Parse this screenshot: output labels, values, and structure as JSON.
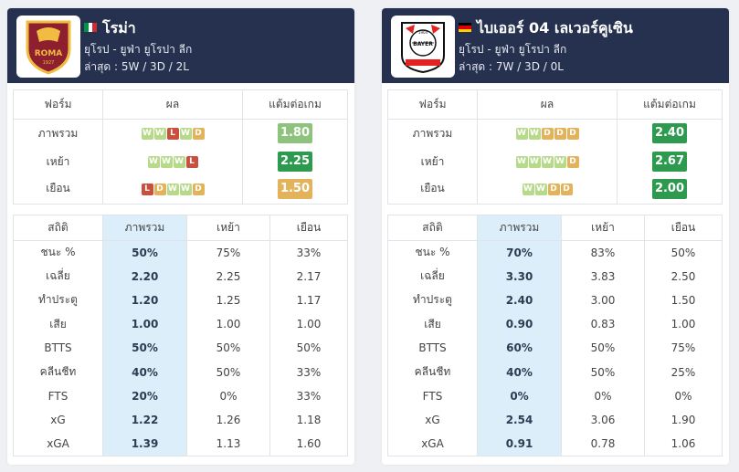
{
  "teams": [
    {
      "name": "โรม่า",
      "league": "ยุโรป - ยูฟ่า ยูโรปา ลีก",
      "latest": "ล่าสุด : 5W / 3D / 2L",
      "logo_icon": "roma-crest-icon",
      "logo_text": "ROMA",
      "logo_year": "1927",
      "flag": [
        "#009246",
        "#ffffff",
        "#ce2b37"
      ],
      "form": {
        "headers": [
          "ฟอร์ม",
          "ผล",
          "แต้มต่อเกม"
        ],
        "rows": [
          {
            "label": "ภาพรวม",
            "results": [
              "W",
              "W",
              "L",
              "W",
              "D"
            ],
            "ppg": "1.80",
            "ppg_color": "#8dc37c"
          },
          {
            "label": "เหย้า",
            "results": [
              "W",
              "W",
              "W",
              "L"
            ],
            "ppg": "2.25",
            "ppg_color": "#2d9a4f"
          },
          {
            "label": "เยือน",
            "results": [
              "L",
              "D",
              "W",
              "W",
              "D"
            ],
            "ppg": "1.50",
            "ppg_color": "#e3b35c"
          }
        ]
      },
      "stats": {
        "headers": [
          "สถิติ",
          "ภาพรวม",
          "เหย้า",
          "เยือน"
        ],
        "rows": [
          [
            "ชนะ %",
            "50%",
            "75%",
            "33%"
          ],
          [
            "เฉลี่ย",
            "2.20",
            "2.25",
            "2.17"
          ],
          [
            "ทำประตู",
            "1.20",
            "1.25",
            "1.17"
          ],
          [
            "เสีย",
            "1.00",
            "1.00",
            "1.00"
          ],
          [
            "BTTS",
            "50%",
            "50%",
            "50%"
          ],
          [
            "คลีนชีท",
            "40%",
            "50%",
            "33%"
          ],
          [
            "FTS",
            "20%",
            "0%",
            "33%"
          ],
          [
            "xG",
            "1.22",
            "1.26",
            "1.18"
          ],
          [
            "xGA",
            "1.39",
            "1.13",
            "1.60"
          ]
        ]
      }
    },
    {
      "name": "ไบเออร์ 04 เลเวอร์คูเซิน",
      "league": "ยุโรป - ยูฟ่า ยูโรปา ลีก",
      "latest": "ล่าสุด : 7W / 3D / 0L",
      "logo_icon": "leverkusen-crest-icon",
      "logo_text": "BAYER",
      "logo_year": "1904",
      "flag": [
        "#000000",
        "#dd0000",
        "#ffce00"
      ],
      "form": {
        "headers": [
          "ฟอร์ม",
          "ผล",
          "แต้มต่อเกม"
        ],
        "rows": [
          {
            "label": "ภาพรวม",
            "results": [
              "W",
              "W",
              "D",
              "D",
              "D"
            ],
            "ppg": "2.40",
            "ppg_color": "#2d9a4f"
          },
          {
            "label": "เหย้า",
            "results": [
              "W",
              "W",
              "W",
              "W",
              "D"
            ],
            "ppg": "2.67",
            "ppg_color": "#2d9a4f"
          },
          {
            "label": "เยือน",
            "results": [
              "W",
              "W",
              "D",
              "D"
            ],
            "ppg": "2.00",
            "ppg_color": "#2d9a4f"
          }
        ]
      },
      "stats": {
        "headers": [
          "สถิติ",
          "ภาพรวม",
          "เหย้า",
          "เยือน"
        ],
        "rows": [
          [
            "ชนะ %",
            "70%",
            "83%",
            "50%"
          ],
          [
            "เฉลี่ย",
            "3.30",
            "3.83",
            "2.50"
          ],
          [
            "ทำประตู",
            "2.40",
            "3.00",
            "1.50"
          ],
          [
            "เสีย",
            "0.90",
            "0.83",
            "1.00"
          ],
          [
            "BTTS",
            "60%",
            "50%",
            "75%"
          ],
          [
            "คลีนชีท",
            "40%",
            "50%",
            "25%"
          ],
          [
            "FTS",
            "0%",
            "0%",
            "0%"
          ],
          [
            "xG",
            "2.54",
            "3.06",
            "1.90"
          ],
          [
            "xGA",
            "0.91",
            "0.78",
            "1.06"
          ]
        ]
      }
    }
  ]
}
